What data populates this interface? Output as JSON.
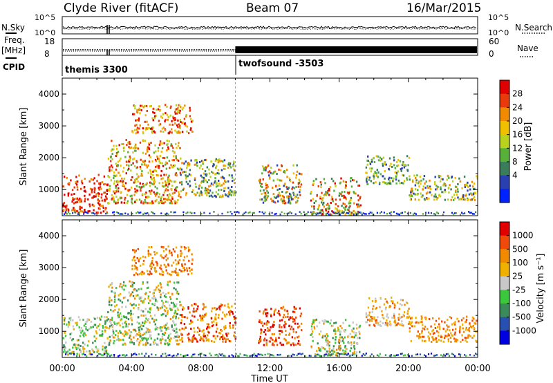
{
  "header": {
    "station": "Clyde River (fitACF)",
    "beam": "Beam 07",
    "date": "16/Mar/2015"
  },
  "top_panels": {
    "nsky_label": "N.Sky",
    "nsearch_label": "N.Search",
    "noise_ticks_left": [
      "10^5",
      "10^0"
    ],
    "noise_ticks_right": [
      "10^5",
      "10^0"
    ],
    "freq_label": "Freq.",
    "freq_unit": "[MHz]",
    "freq_ticks": [
      "18",
      "8"
    ],
    "nave_label": "Nave",
    "nave_ticks": [
      "60",
      "0"
    ],
    "cpid_label": "CPID",
    "cpid_segments": [
      {
        "name": "themis 3300",
        "start_hour": 0
      },
      {
        "name": "twofsound -3503",
        "start_hour": 10
      }
    ]
  },
  "chart_data": [
    {
      "type": "heatmap",
      "name": "power",
      "xlabel": "",
      "ylabel": "Slant Range [km]",
      "xlim_hours": [
        0,
        24
      ],
      "ylim": [
        180,
        4500
      ],
      "yticks": [
        "1000",
        "2000",
        "3000",
        "4000"
      ],
      "colorbar_label": "Power [dB]",
      "colorbar_ticks": [
        "28",
        "24",
        "20",
        "16",
        "12",
        "8",
        "4"
      ],
      "colors": [
        "#0022ff",
        "#2a3fb0",
        "#3a7d5a",
        "#58b03a",
        "#b8d21e",
        "#f0c000",
        "#f08a00",
        "#e83a0a",
        "#e00000"
      ],
      "clusters": [
        {
          "t": [
            0.0,
            2.6
          ],
          "r": [
            300,
            1500
          ],
          "level": [
            6,
            9
          ]
        },
        {
          "t": [
            2.6,
            6.8
          ],
          "r": [
            600,
            2600
          ],
          "level": [
            3,
            8
          ]
        },
        {
          "t": [
            4.0,
            7.5
          ],
          "r": [
            2800,
            3700
          ],
          "level": [
            4,
            8
          ]
        },
        {
          "t": [
            6.8,
            10.0
          ],
          "r": [
            800,
            2000
          ],
          "level": [
            1,
            6
          ]
        },
        {
          "t": [
            11.3,
            13.8
          ],
          "r": [
            600,
            1800
          ],
          "level": [
            1,
            7
          ]
        },
        {
          "t": [
            14.3,
            17.2
          ],
          "r": [
            250,
            1400
          ],
          "level": [
            2,
            8
          ]
        },
        {
          "t": [
            17.5,
            20.0
          ],
          "r": [
            1200,
            2100
          ],
          "level": [
            1,
            5
          ]
        },
        {
          "t": [
            20.0,
            24.0
          ],
          "r": [
            700,
            1500
          ],
          "level": [
            1,
            6
          ]
        }
      ]
    },
    {
      "type": "heatmap",
      "name": "velocity",
      "xlabel": "Time UT",
      "ylabel": "Slant Range [km]",
      "xlim_hours": [
        0,
        24
      ],
      "ylim": [
        180,
        4500
      ],
      "yticks": [
        "1000",
        "2000",
        "3000",
        "4000"
      ],
      "xticks": [
        "00:00",
        "04:00",
        "08:00",
        "12:00",
        "16:00",
        "20:00",
        "00:00"
      ],
      "colorbar_label": "Velocity [m s⁻¹]",
      "colorbar_ticks": [
        "1000",
        "500",
        "100",
        "25",
        "-25",
        "-100",
        "-500",
        "-1000"
      ],
      "colors": [
        "#0000e0",
        "#2850b0",
        "#3a8a5a",
        "#3cc83c",
        "#c8c8c8",
        "#f0b000",
        "#f08a00",
        "#f04a0a",
        "#e00000"
      ],
      "clusters": [
        {
          "t": [
            0.0,
            2.6
          ],
          "r": [
            300,
            1500
          ],
          "level": [
            2,
            5
          ]
        },
        {
          "t": [
            2.6,
            6.8
          ],
          "r": [
            600,
            2600
          ],
          "level": [
            2,
            6
          ]
        },
        {
          "t": [
            4.0,
            7.5
          ],
          "r": [
            2800,
            3700
          ],
          "level": [
            5,
            7
          ]
        },
        {
          "t": [
            6.8,
            10.0
          ],
          "r": [
            700,
            1900
          ],
          "level": [
            5,
            8
          ]
        },
        {
          "t": [
            11.3,
            13.8
          ],
          "r": [
            600,
            1800
          ],
          "level": [
            6,
            8
          ]
        },
        {
          "t": [
            14.3,
            17.2
          ],
          "r": [
            250,
            1400
          ],
          "level": [
            2,
            6
          ]
        },
        {
          "t": [
            17.5,
            20.0
          ],
          "r": [
            1200,
            2100
          ],
          "level": [
            4,
            7
          ]
        },
        {
          "t": [
            20.0,
            24.0
          ],
          "r": [
            700,
            1500
          ],
          "level": [
            5,
            7
          ]
        }
      ]
    }
  ]
}
